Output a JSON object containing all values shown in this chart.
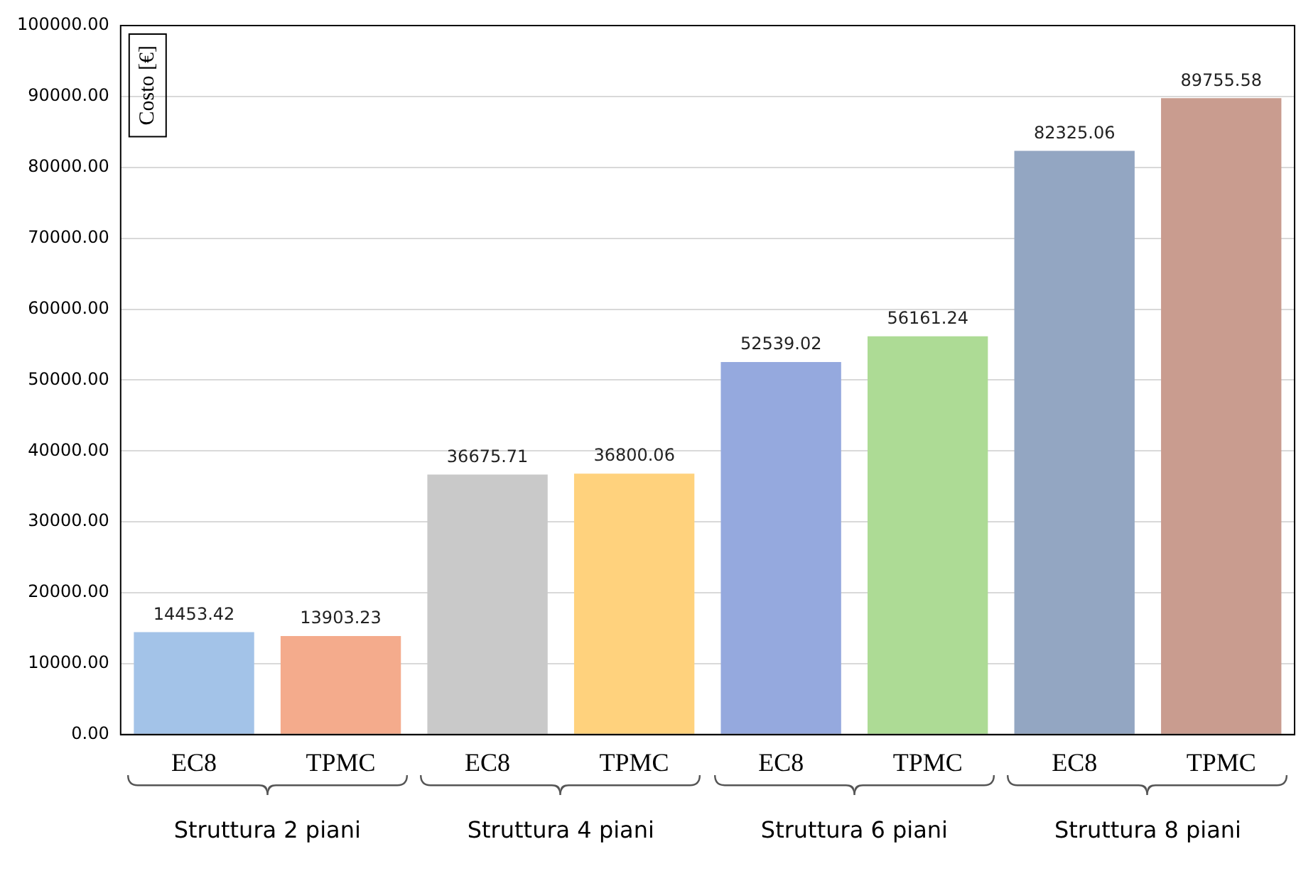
{
  "chart_data": {
    "type": "bar",
    "ylabel": "Costo [€]",
    "categories": [
      "EC8",
      "TPMC",
      "EC8",
      "TPMC",
      "EC8",
      "TPMC",
      "EC8",
      "TPMC"
    ],
    "values": [
      14453.42,
      13903.23,
      36675.71,
      36800.06,
      52539.02,
      56161.24,
      82325.06,
      89755.58
    ],
    "colors": [
      "#a3c3e8",
      "#f4ab8c",
      "#c9c9c9",
      "#ffd27d",
      "#95a9de",
      "#addb95",
      "#93a6c2",
      "#c99c8f"
    ],
    "ylim": [
      0,
      100000
    ],
    "yticks": [
      {
        "value": 0,
        "label": "0.00"
      },
      {
        "value": 10000,
        "label": "10000.00"
      },
      {
        "value": 20000,
        "label": "20000.00"
      },
      {
        "value": 30000,
        "label": "30000.00"
      },
      {
        "value": 40000,
        "label": "40000.00"
      },
      {
        "value": 50000,
        "label": "50000.00"
      },
      {
        "value": 60000,
        "label": "60000.00"
      },
      {
        "value": 70000,
        "label": "70000.00"
      },
      {
        "value": 80000,
        "label": "80000.00"
      },
      {
        "value": 90000,
        "label": "90000.00"
      },
      {
        "value": 100000,
        "label": "100000.00"
      }
    ],
    "grid": "y",
    "data_labels": true,
    "annotations": [
      "Struttura 2 piani",
      "Struttura 4 piani",
      "Struttura 6 piani",
      "Struttura 8 piani"
    ]
  }
}
